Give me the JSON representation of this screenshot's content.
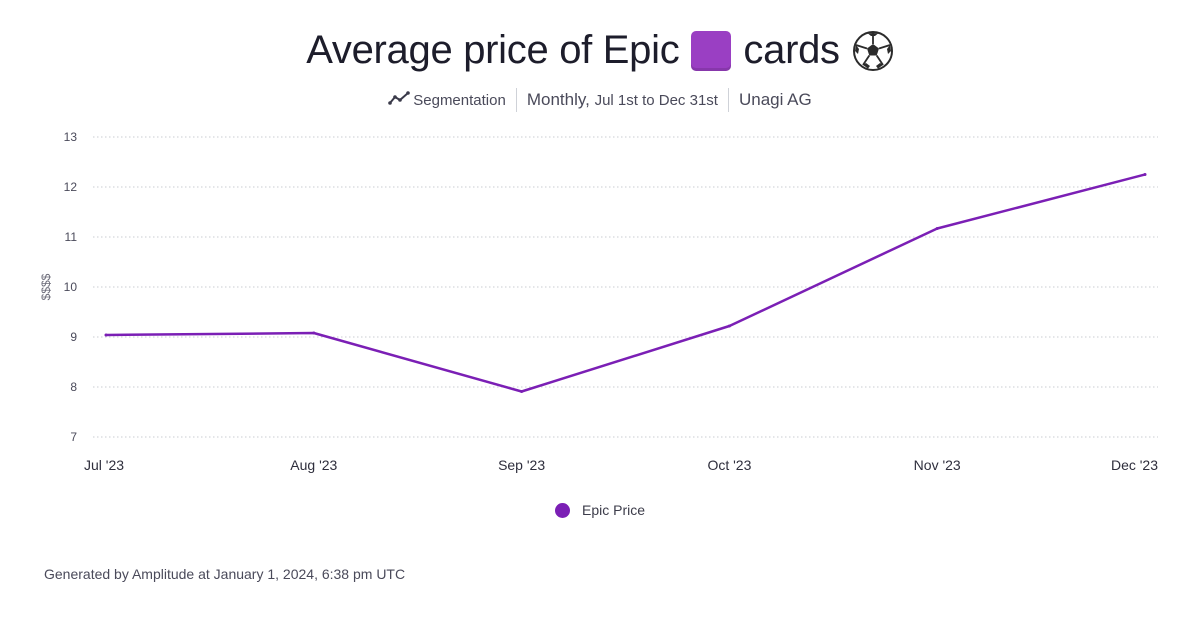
{
  "header": {
    "title_before": "Average price of Epic",
    "title_after": "cards",
    "title_icons": [
      "purple-square-icon",
      "soccer-ball-icon"
    ]
  },
  "subtitle": {
    "chart_kind": "Segmentation",
    "range": "Monthly,",
    "range_small": "Jul 1st to Dec 31st",
    "org": "Unagi AG"
  },
  "chart_data": {
    "type": "line",
    "title": "Average price of Epic 🟪 cards ⚽",
    "xlabel": "",
    "ylabel": "$$$$",
    "categories": [
      "Jul '23",
      "Aug '23",
      "Sep '23",
      "Oct '23",
      "Nov '23",
      "Dec '23"
    ],
    "ylim": [
      7,
      13
    ],
    "yticks": [
      7,
      8,
      9,
      10,
      11,
      12,
      13
    ],
    "grid": true,
    "legend_position": "bottom-center",
    "series": [
      {
        "name": "Epic Price",
        "color": "#7b1fb5",
        "values": [
          9.04,
          9.08,
          7.91,
          9.22,
          11.17,
          12.25
        ]
      }
    ]
  },
  "footer": {
    "text": "Generated by Amplitude at January 1, 2024, 6:38 pm UTC"
  }
}
